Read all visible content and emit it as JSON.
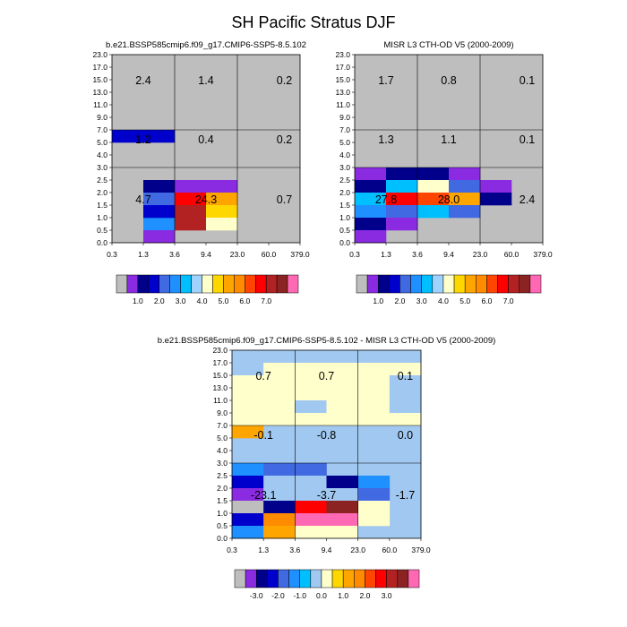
{
  "figure": {
    "title": "SH Pacific Stratus DJF"
  },
  "chart_data": [
    {
      "type": "heatmap",
      "title": "b.e21.BSSP585cmip6.f09_g17.CMIP6-SSP5-8.5.102",
      "x_ticks": [
        "0.3",
        "1.3",
        "3.6",
        "9.4",
        "23.0",
        "60.0",
        "379.0"
      ],
      "y_ticks": [
        "0.0",
        "0.5",
        "1.0",
        "1.5",
        "2.0",
        "2.5",
        "3.0",
        "4.0",
        "5.0",
        "7.0",
        "9.0",
        "11.0",
        "13.0",
        "15.0",
        "17.0",
        "23.0"
      ],
      "missing_color": "#bebebe",
      "cells": [
        {
          "x": 1,
          "y": 8,
          "c": 3
        },
        {
          "x": 1,
          "y": 4,
          "c": 2
        },
        {
          "x": 1,
          "y": 3,
          "c": 4
        },
        {
          "x": 1,
          "y": 2,
          "c": 5
        },
        {
          "x": 1,
          "y": 1,
          "c": 1
        },
        {
          "x": 1,
          "y": 0,
          "c": 1
        },
        {
          "x": 2,
          "y": 4,
          "c": 1
        },
        {
          "x": 3,
          "y": 4,
          "c": 1
        },
        {
          "x": 2,
          "y": 3,
          "c": 13
        },
        {
          "x": 3,
          "y": 3,
          "c": 10
        },
        {
          "x": 2,
          "y": 2,
          "c": 14
        },
        {
          "x": 3,
          "y": 2,
          "c": 9
        },
        {
          "x": 2,
          "y": 1,
          "c": 14
        }
      ],
      "cell_overrides": [
        {
          "x": 0,
          "y": 8,
          "c": 3
        },
        {
          "x": 1,
          "y": 1,
          "c": 5
        },
        {
          "x": 1,
          "y": 0,
          "c": 1
        },
        {
          "x": 1,
          "y": 2,
          "c": 3
        },
        {
          "x": 3,
          "y": 1,
          "c": 8
        }
      ],
      "region_labels": [
        {
          "text": "2.4",
          "x": 0.5,
          "y": 12.5
        },
        {
          "text": "1.4",
          "x": 2.5,
          "y": 12.5
        },
        {
          "text": "0.2",
          "x": 5.0,
          "y": 12.5
        },
        {
          "text": "1.2",
          "x": 0.5,
          "y": 7.8
        },
        {
          "text": "0.4",
          "x": 2.5,
          "y": 7.8
        },
        {
          "text": "0.2",
          "x": 5.0,
          "y": 7.8
        },
        {
          "text": "4.7",
          "x": 0.5,
          "y": 3.0
        },
        {
          "text": "24.3",
          "x": 2.5,
          "y": 3.0
        },
        {
          "text": "0.7",
          "x": 5.0,
          "y": 3.0
        }
      ]
    },
    {
      "type": "heatmap",
      "title": "MISR L3 CTH-OD V5 (2000-2009)",
      "x_ticks": [
        "0.3",
        "1.3",
        "3.6",
        "9.4",
        "23.0",
        "60.0",
        "379.0"
      ],
      "y_ticks": [
        "0.0",
        "0.5",
        "1.0",
        "1.5",
        "2.0",
        "2.5",
        "3.0",
        "4.0",
        "5.0",
        "7.0",
        "9.0",
        "11.0",
        "13.0",
        "15.0",
        "17.0",
        "23.0"
      ],
      "missing_color": "#bebebe",
      "cells": [
        {
          "x": 0,
          "y": 5,
          "c": 1
        },
        {
          "x": 1,
          "y": 5,
          "c": 2
        },
        {
          "x": 2,
          "y": 5,
          "c": 2
        },
        {
          "x": 3,
          "y": 5,
          "c": 1
        },
        {
          "x": 0,
          "y": 4,
          "c": 2
        },
        {
          "x": 1,
          "y": 4,
          "c": 6
        },
        {
          "x": 2,
          "y": 4,
          "c": 8
        },
        {
          "x": 3,
          "y": 4,
          "c": 4
        },
        {
          "x": 4,
          "y": 4,
          "c": 1
        },
        {
          "x": 0,
          "y": 3,
          "c": 6
        },
        {
          "x": 1,
          "y": 3,
          "c": 13
        },
        {
          "x": 2,
          "y": 3,
          "c": 12
        },
        {
          "x": 3,
          "y": 3,
          "c": 10
        },
        {
          "x": 4,
          "y": 3,
          "c": 2
        },
        {
          "x": 0,
          "y": 2,
          "c": 5
        },
        {
          "x": 1,
          "y": 2,
          "c": 4
        },
        {
          "x": 2,
          "y": 2,
          "c": 6
        },
        {
          "x": 3,
          "y": 2,
          "c": 4
        },
        {
          "x": 0,
          "y": 1,
          "c": 2
        },
        {
          "x": 1,
          "y": 1,
          "c": 1
        },
        {
          "x": 0,
          "y": 0,
          "c": 1
        }
      ],
      "region_labels": [
        {
          "text": "1.7",
          "x": 0.5,
          "y": 12.5
        },
        {
          "text": "0.8",
          "x": 2.5,
          "y": 12.5
        },
        {
          "text": "0.1",
          "x": 5.0,
          "y": 12.5
        },
        {
          "text": "1.3",
          "x": 0.5,
          "y": 7.8
        },
        {
          "text": "1.1",
          "x": 2.5,
          "y": 7.8
        },
        {
          "text": "0.1",
          "x": 5.0,
          "y": 7.8
        },
        {
          "text": "27.8",
          "x": 0.5,
          "y": 3.0
        },
        {
          "text": "28.0",
          "x": 2.5,
          "y": 3.0
        },
        {
          "text": "2.4",
          "x": 5.0,
          "y": 3.0
        }
      ]
    },
    {
      "type": "heatmap",
      "title": "b.e21.BSSP585cmip6.f09_g17.CMIP6-SSP5-8.5.102 - MISR L3 CTH-OD V5 (2000-2009)",
      "x_ticks": [
        "0.3",
        "1.3",
        "3.6",
        "9.4",
        "23.0",
        "60.0",
        "379.0"
      ],
      "y_ticks": [
        "0.0",
        "0.5",
        "1.0",
        "1.5",
        "2.0",
        "2.5",
        "3.0",
        "4.0",
        "5.0",
        "7.0",
        "9.0",
        "11.0",
        "13.0",
        "15.0",
        "17.0",
        "23.0"
      ],
      "background_color": "#a0c8f0",
      "cells": [
        {
          "x": 0,
          "y": 14,
          "c": 7
        },
        {
          "x": 1,
          "y": 14,
          "c": 7
        },
        {
          "x": 2,
          "y": 14,
          "c": 7
        },
        {
          "x": 3,
          "y": 14,
          "c": 7
        },
        {
          "x": 4,
          "y": 14,
          "c": 7
        },
        {
          "x": 5,
          "y": 14,
          "c": 7
        },
        {
          "x": 0,
          "y": 13,
          "c": 7
        },
        {
          "x": 1,
          "y": 13,
          "c": 8
        },
        {
          "x": 2,
          "y": 13,
          "c": 8
        },
        {
          "x": 3,
          "y": 13,
          "c": 8
        },
        {
          "x": 4,
          "y": 13,
          "c": 8
        },
        {
          "x": 5,
          "y": 13,
          "c": 8
        },
        {
          "x": 0,
          "y": 12,
          "c": 8
        },
        {
          "x": 1,
          "y": 12,
          "c": 8
        },
        {
          "x": 2,
          "y": 12,
          "c": 8
        },
        {
          "x": 3,
          "y": 12,
          "c": 8
        },
        {
          "x": 4,
          "y": 12,
          "c": 8
        },
        {
          "x": 5,
          "y": 12,
          "c": 7
        },
        {
          "x": 0,
          "y": 11,
          "c": 8
        },
        {
          "x": 1,
          "y": 11,
          "c": 8
        },
        {
          "x": 2,
          "y": 11,
          "c": 8
        },
        {
          "x": 3,
          "y": 11,
          "c": 8
        },
        {
          "x": 4,
          "y": 11,
          "c": 8
        },
        {
          "x": 5,
          "y": 11,
          "c": 7
        },
        {
          "x": 0,
          "y": 10,
          "c": 8
        },
        {
          "x": 1,
          "y": 10,
          "c": 8
        },
        {
          "x": 2,
          "y": 10,
          "c": 7
        },
        {
          "x": 3,
          "y": 10,
          "c": 8
        },
        {
          "x": 4,
          "y": 10,
          "c": 8
        },
        {
          "x": 5,
          "y": 10,
          "c": 7
        },
        {
          "x": 0,
          "y": 9,
          "c": 8
        },
        {
          "x": 1,
          "y": 9,
          "c": 8
        },
        {
          "x": 2,
          "y": 9,
          "c": 8
        },
        {
          "x": 3,
          "y": 9,
          "c": 8
        },
        {
          "x": 4,
          "y": 9,
          "c": 8
        },
        {
          "x": 5,
          "y": 9,
          "c": 8
        },
        {
          "x": 0,
          "y": 8,
          "c": 10
        },
        {
          "x": 0,
          "y": 5,
          "c": 5
        },
        {
          "x": 1,
          "y": 5,
          "c": 4
        },
        {
          "x": 2,
          "y": 5,
          "c": 4
        },
        {
          "x": 0,
          "y": 4,
          "c": 3
        },
        {
          "x": 1,
          "y": 4,
          "c": 7
        },
        {
          "x": 2,
          "y": 4,
          "c": 7
        },
        {
          "x": 3,
          "y": 4,
          "c": 2
        },
        {
          "x": 4,
          "y": 4,
          "c": 5
        },
        {
          "x": 0,
          "y": 3,
          "c": 1
        },
        {
          "x": 1,
          "y": 3,
          "c": 7
        },
        {
          "x": 2,
          "y": 3,
          "c": 7
        },
        {
          "x": 3,
          "y": 3,
          "c": 7
        },
        {
          "x": 4,
          "y": 3,
          "c": 4
        },
        {
          "x": 0,
          "y": 2,
          "c": 0
        },
        {
          "x": 1,
          "y": 2,
          "c": 2
        },
        {
          "x": 2,
          "y": 2,
          "c": 13
        },
        {
          "x": 3,
          "y": 2,
          "c": 15
        },
        {
          "x": 4,
          "y": 2,
          "c": 8
        },
        {
          "x": 0,
          "y": 1,
          "c": 3
        },
        {
          "x": 1,
          "y": 1,
          "c": 11
        },
        {
          "x": 2,
          "y": 1,
          "c": 16
        },
        {
          "x": 3,
          "y": 1,
          "c": 16
        },
        {
          "x": 4,
          "y": 1,
          "c": 8
        },
        {
          "x": 0,
          "y": 0,
          "c": 5
        },
        {
          "x": 1,
          "y": 0,
          "c": 10
        },
        {
          "x": 2,
          "y": 0,
          "c": 8
        },
        {
          "x": 3,
          "y": 0,
          "c": 8
        }
      ],
      "region_labels": [
        {
          "text": "0.7",
          "x": 0.5,
          "y": 12.5
        },
        {
          "text": "0.7",
          "x": 2.5,
          "y": 12.5
        },
        {
          "text": "0.1",
          "x": 5.0,
          "y": 12.5
        },
        {
          "text": "-0.1",
          "x": 0.5,
          "y": 7.8
        },
        {
          "text": "-0.8",
          "x": 2.5,
          "y": 7.8
        },
        {
          "text": "0.0",
          "x": 5.0,
          "y": 7.8
        },
        {
          "text": "-23.1",
          "x": 0.5,
          "y": 3.0
        },
        {
          "text": "-3.7",
          "x": 2.5,
          "y": 3.0
        },
        {
          "text": "-1.7",
          "x": 5.0,
          "y": 3.0
        }
      ]
    }
  ],
  "colorbars": [
    {
      "labels": [
        "1.0",
        "2.0",
        "3.0",
        "4.0",
        "5.0",
        "6.0",
        "7.0"
      ],
      "colors": [
        "#bebebe",
        "#8a2be2",
        "#00008b",
        "#0000cd",
        "#4169e1",
        "#1e90ff",
        "#00bfff",
        "#a0d2ff",
        "#ffffcc",
        "#ffd700",
        "#ffa500",
        "#ff8c00",
        "#ff4500",
        "#ff0000",
        "#b22222",
        "#8b2323",
        "#ff69b4"
      ]
    },
    {
      "labels": [
        "1.0",
        "2.0",
        "3.0",
        "4.0",
        "5.0",
        "6.0",
        "7.0"
      ],
      "colors": [
        "#bebebe",
        "#8a2be2",
        "#00008b",
        "#0000cd",
        "#4169e1",
        "#1e90ff",
        "#00bfff",
        "#a0d2ff",
        "#ffffcc",
        "#ffd700",
        "#ffa500",
        "#ff8c00",
        "#ff4500",
        "#ff0000",
        "#b22222",
        "#8b2323",
        "#ff69b4"
      ]
    },
    {
      "labels": [
        "-3.0",
        "-2.0",
        "-1.0",
        "0.0",
        "1.0",
        "2.0",
        "3.0"
      ],
      "colors": [
        "#bebebe",
        "#8a2be2",
        "#00008b",
        "#0000cd",
        "#4169e1",
        "#1e90ff",
        "#00bfff",
        "#a0c8f0",
        "#ffffcc",
        "#ffd700",
        "#ffa500",
        "#ff8c00",
        "#ff4500",
        "#ff0000",
        "#b22222",
        "#8b2323",
        "#ff69b4"
      ]
    }
  ]
}
